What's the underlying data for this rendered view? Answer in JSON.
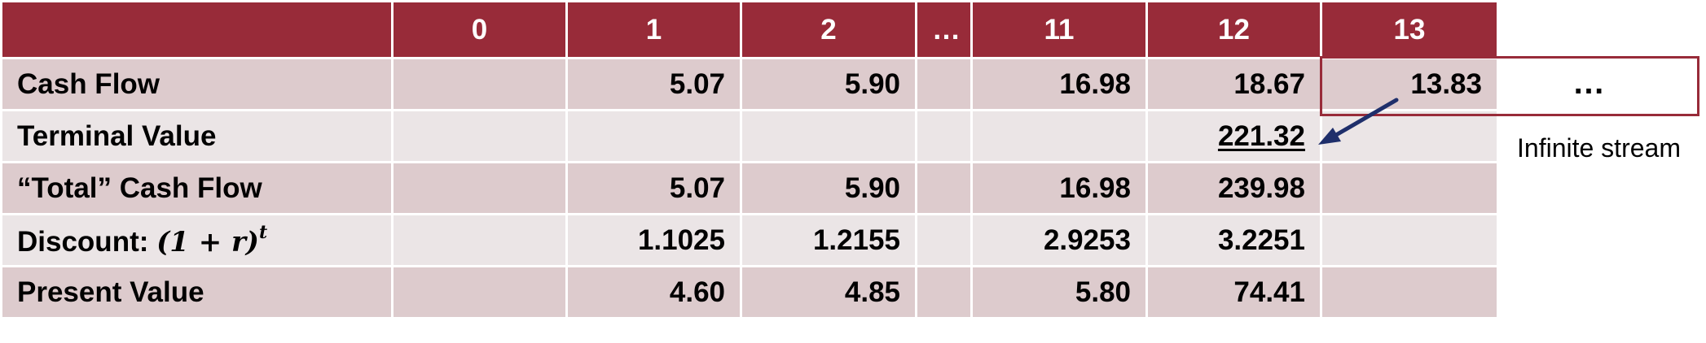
{
  "header": {
    "periods": [
      "0",
      "1",
      "2",
      "…",
      "11",
      "12",
      "13"
    ]
  },
  "rows": [
    {
      "label": "Cash Flow",
      "cells": [
        "",
        "5.07",
        "5.90",
        "",
        "16.98",
        "18.67",
        "13.83"
      ]
    },
    {
      "label": "Terminal Value",
      "cells": [
        "",
        "",
        "",
        "",
        "",
        "221.32",
        ""
      ]
    },
    {
      "label": "“Total” Cash Flow",
      "cells": [
        "",
        "5.07",
        "5.90",
        "",
        "16.98",
        "239.98",
        ""
      ]
    },
    {
      "label": "Discount: ",
      "formula_base": "(1 + r)",
      "formula_exp": "t",
      "cells": [
        "",
        "1.1025",
        "1.2155",
        "",
        "2.9253",
        "3.2251",
        ""
      ]
    },
    {
      "label": "Present Value",
      "cells": [
        "",
        "4.60",
        "4.85",
        "",
        "5.80",
        "74.41",
        ""
      ]
    }
  ],
  "annotation": {
    "ellipsis": "…",
    "infinite_stream_label": "Infinite stream"
  },
  "colors": {
    "header_bg": "#982b39",
    "row_dark": "#ddcbcd",
    "row_light": "#ebe5e6",
    "arrow": "#1f2f6b"
  }
}
